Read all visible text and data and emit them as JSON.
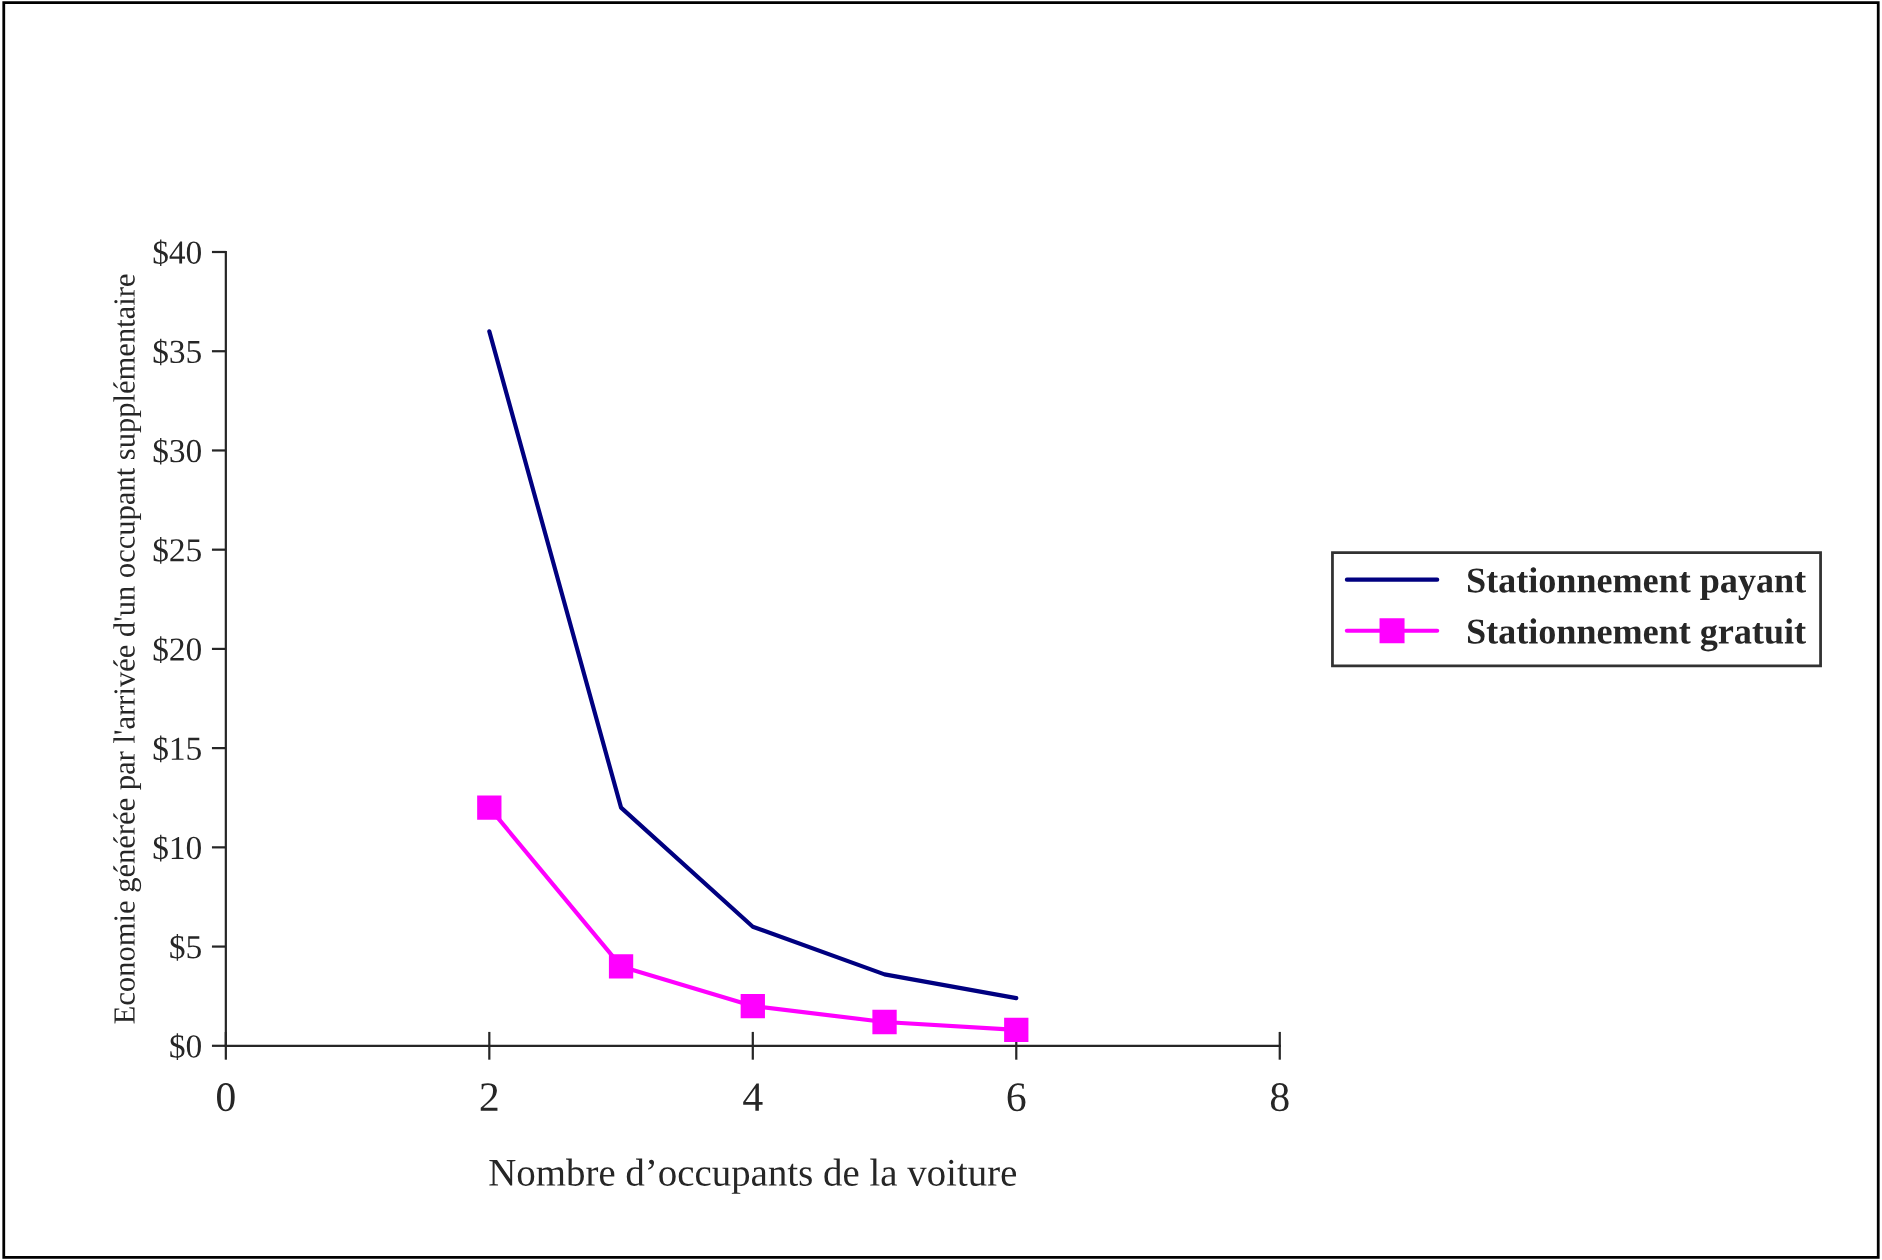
{
  "chart_data": {
    "type": "line",
    "xlabel": "Nombre d’occupants de la voiture",
    "ylabel": "Economie générée par l'arrivée d'un occupant supplémentaire",
    "x": [
      2,
      3,
      4,
      5,
      6
    ],
    "series": [
      {
        "name": "Stationnement payant",
        "color": "#000080",
        "values": [
          36,
          12,
          6,
          3.6,
          2.4
        ],
        "marker": "none"
      },
      {
        "name": "Stationnement gratuit",
        "color": "#ff00ff",
        "values": [
          12,
          4,
          2,
          1.2,
          0.8
        ],
        "marker": "square"
      }
    ],
    "xlim": [
      0,
      8
    ],
    "xticks": [
      0,
      2,
      4,
      6,
      8
    ],
    "ylim": [
      0,
      40
    ],
    "yticks": [
      {
        "value": 0,
        "label": "$0"
      },
      {
        "value": 5,
        "label": "$5"
      },
      {
        "value": 10,
        "label": "$10"
      },
      {
        "value": 15,
        "label": "$15"
      },
      {
        "value": 20,
        "label": "$20"
      },
      {
        "value": 25,
        "label": "$25"
      },
      {
        "value": 30,
        "label": "$30"
      },
      {
        "value": 35,
        "label": "$35"
      },
      {
        "value": 40,
        "label": "$40"
      }
    ],
    "grid": false,
    "legend": "right"
  }
}
